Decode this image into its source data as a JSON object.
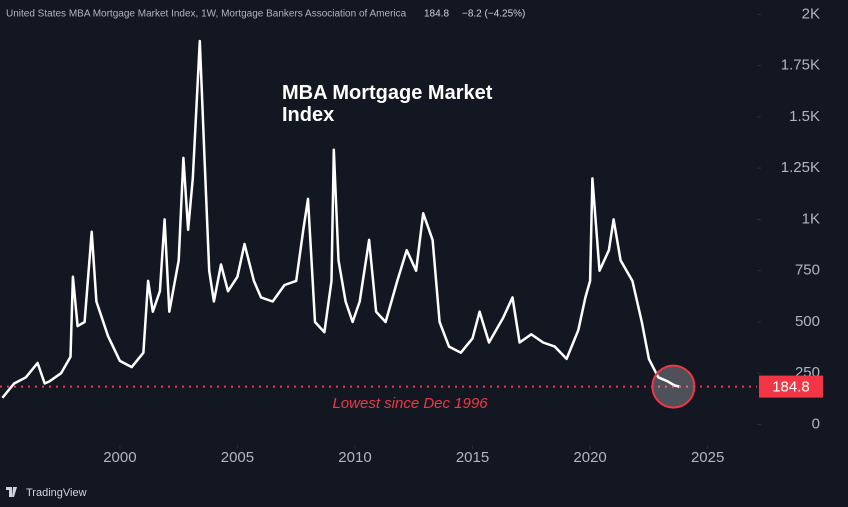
{
  "chart_data": {
    "type": "line",
    "header": "United States MBA Mortgage Market Index, 1W, Mortgage Bankers Association of America",
    "change": "−8.2 (−4.25%)",
    "title": "MBA Mortgage Market Index",
    "annotation": "Lowest since Dec 1996",
    "brand": "TradingView",
    "series": [
      {
        "name": "MBA Mortgage Market Index",
        "color": "#ffffff",
        "x": [
          1995.0,
          1995.5,
          1996.0,
          1996.5,
          1996.8,
          1997.0,
          1997.5,
          1997.9,
          1998.0,
          1998.2,
          1998.5,
          1998.8,
          1999.0,
          1999.5,
          2000.0,
          2000.5,
          2001.0,
          2001.2,
          2001.4,
          2001.7,
          2001.9,
          2002.1,
          2002.5,
          2002.7,
          2002.9,
          2003.1,
          2003.4,
          2003.6,
          2003.8,
          2004.0,
          2004.3,
          2004.6,
          2005.0,
          2005.3,
          2005.7,
          2006.0,
          2006.5,
          2007.0,
          2007.5,
          2007.8,
          2008.0,
          2008.3,
          2008.7,
          2009.0,
          2009.1,
          2009.3,
          2009.6,
          2009.9,
          2010.2,
          2010.6,
          2010.9,
          2011.3,
          2011.8,
          2012.2,
          2012.6,
          2012.9,
          2013.3,
          2013.6,
          2014.0,
          2014.5,
          2015.0,
          2015.3,
          2015.7,
          2016.3,
          2016.7,
          2017.0,
          2017.5,
          2018.0,
          2018.5,
          2019.0,
          2019.5,
          2019.8,
          2020.0,
          2020.1,
          2020.4,
          2020.8,
          2021.0,
          2021.3,
          2021.8,
          2022.2,
          2022.5,
          2022.9,
          2023.3,
          2023.6,
          2023.8
        ],
        "values": [
          130,
          200,
          230,
          300,
          200,
          210,
          250,
          330,
          720,
          480,
          500,
          940,
          600,
          430,
          310,
          280,
          350,
          700,
          550,
          650,
          1000,
          550,
          800,
          1300,
          950,
          1200,
          1870,
          1300,
          750,
          600,
          780,
          650,
          720,
          880,
          700,
          620,
          600,
          680,
          700,
          950,
          1100,
          500,
          450,
          700,
          1340,
          800,
          600,
          500,
          600,
          900,
          550,
          500,
          700,
          850,
          750,
          1030,
          900,
          500,
          380,
          350,
          420,
          550,
          400,
          520,
          620,
          400,
          440,
          400,
          380,
          320,
          460,
          620,
          700,
          1200,
          750,
          850,
          1000,
          800,
          700,
          500,
          320,
          230,
          210,
          190,
          184.8
        ]
      }
    ],
    "xlim": [
      1994.9,
      2027.1
    ],
    "ylim": [
      -100,
      2070
    ],
    "xticks": [
      2000,
      2005,
      2010,
      2015,
      2020,
      2025
    ],
    "yticks": [
      0,
      250,
      500,
      750,
      {
        "value": 1000,
        "label": "1K"
      },
      {
        "value": 1250,
        "label": "1.25K"
      },
      {
        "value": 1500,
        "label": "1.5K"
      },
      {
        "value": 1750,
        "label": "1.75K"
      },
      {
        "value": 2000,
        "label": "2K"
      }
    ],
    "last_color": "#f23645",
    "grid": false
  }
}
